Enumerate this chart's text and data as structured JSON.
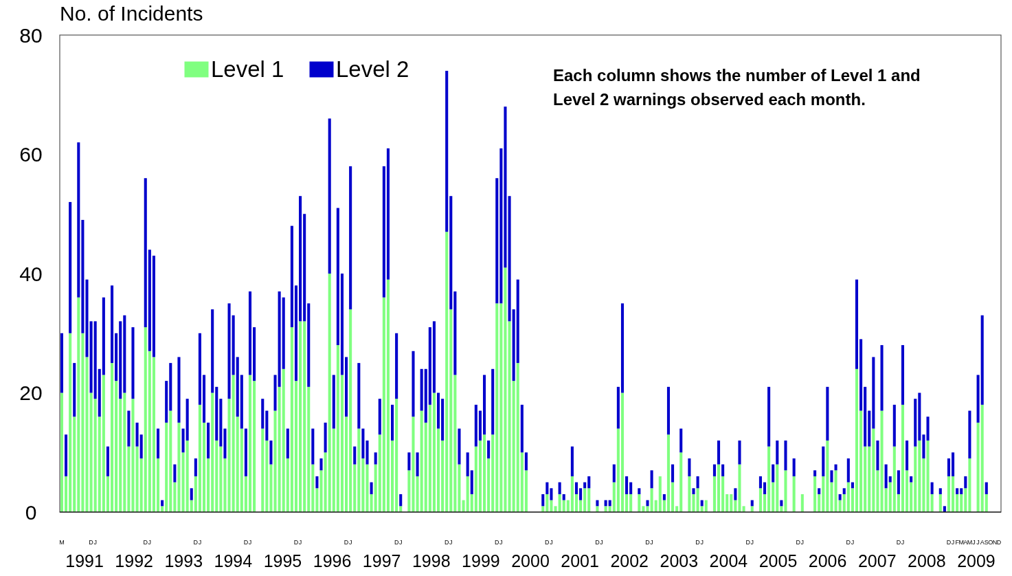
{
  "chart_data": {
    "type": "bar",
    "stacked": true,
    "ylabel": "No. of Incidents",
    "ylim": [
      0,
      80
    ],
    "yticks": [
      0,
      20,
      40,
      60,
      80
    ],
    "grid": false,
    "legend": "top left",
    "annotations": [
      "Each column shows the number of Level 1 and Level 2 warnings observed each month.",
      "1991",
      "1992",
      "1993",
      "1994",
      "1995",
      "1996",
      "1997",
      "1998",
      "1999",
      "2000",
      "2001",
      "2002",
      "2003",
      "2004",
      "2005",
      "2006",
      "2007",
      "2008",
      "2009"
    ],
    "categories": [
      "M",
      null,
      null,
      null,
      null,
      null,
      null,
      "D",
      "J",
      null,
      null,
      null,
      null,
      null,
      null,
      null,
      null,
      null,
      null,
      null,
      "D",
      "J",
      null,
      null,
      null,
      null,
      null,
      null,
      null,
      null,
      null,
      null,
      "D",
      "J",
      null,
      null,
      null,
      null,
      null,
      null,
      null,
      null,
      null,
      null,
      "D",
      "J",
      null,
      null,
      null,
      null,
      null,
      null,
      null,
      null,
      null,
      null,
      "D",
      "J",
      null,
      null,
      null,
      null,
      null,
      null,
      null,
      null,
      null,
      null,
      "D",
      "J",
      null,
      null,
      null,
      null,
      null,
      null,
      null,
      null,
      null,
      null,
      "D",
      "J",
      null,
      null,
      null,
      null,
      null,
      null,
      null,
      null,
      null,
      null,
      "D",
      "J",
      null,
      null,
      null,
      null,
      null,
      null,
      null,
      null,
      null,
      null,
      "D",
      "J",
      null,
      null,
      null,
      null,
      null,
      null,
      null,
      null,
      null,
      null,
      "D",
      "J",
      null,
      null,
      null,
      null,
      null,
      null,
      null,
      null,
      null,
      null,
      "D",
      "J",
      null,
      null,
      null,
      null,
      null,
      null,
      null,
      null,
      null,
      null,
      "D",
      "J",
      null,
      null,
      null,
      null,
      null,
      null,
      null,
      null,
      null,
      null,
      "D",
      "J",
      null,
      null,
      null,
      null,
      null,
      null,
      null,
      null,
      null,
      null,
      "D",
      "J",
      null,
      null,
      null,
      null,
      null,
      null,
      null,
      null,
      null,
      null,
      "D",
      "J",
      null,
      null,
      null,
      null,
      null,
      null,
      null,
      null,
      null,
      null,
      "D",
      "J",
      null,
      null,
      null,
      null,
      null,
      null,
      null,
      null,
      null,
      null,
      "D",
      "J",
      null,
      null,
      null,
      null,
      null,
      null,
      null,
      null,
      null,
      null,
      "D",
      "J",
      "F",
      "M",
      "A",
      "M",
      "J",
      "J",
      "A",
      "S",
      "O",
      "N",
      "D"
    ],
    "series": [
      {
        "name": "Level 1",
        "color": "#80ff80",
        "values": [
          20,
          6,
          30,
          16,
          36,
          30,
          26,
          20,
          19,
          16,
          23,
          6,
          25,
          22,
          19,
          20,
          11,
          19,
          11,
          9,
          31,
          27,
          26,
          9,
          1,
          15,
          17,
          5,
          15,
          10,
          12,
          2,
          6,
          18,
          15,
          9,
          20,
          12,
          11,
          9,
          19,
          23,
          16,
          14,
          6,
          23,
          22,
          0,
          14,
          12,
          8,
          17,
          21,
          24,
          9,
          31,
          22,
          32,
          32,
          21,
          8,
          4,
          7,
          10,
          40,
          14,
          28,
          23,
          16,
          34,
          8,
          14,
          9,
          8,
          3,
          8,
          13,
          36,
          39,
          12,
          19,
          1,
          0,
          7,
          16,
          6,
          17,
          15,
          18,
          20,
          14,
          12,
          47,
          34,
          23,
          8,
          2,
          6,
          3,
          11,
          12,
          13,
          9,
          13,
          35,
          35,
          41,
          32,
          22,
          25,
          10,
          7,
          0,
          0,
          0,
          1,
          3,
          2,
          1,
          3,
          2,
          2,
          6,
          3,
          2,
          4,
          4,
          0,
          1,
          0,
          1,
          1,
          5,
          14,
          20,
          3,
          3,
          0,
          3,
          1,
          1,
          4,
          2,
          6,
          2,
          13,
          5,
          1,
          10,
          0,
          6,
          3,
          4,
          1,
          2,
          0,
          6,
          8,
          6,
          3,
          3,
          2,
          8,
          1,
          0,
          1,
          0,
          4,
          3,
          11,
          5,
          8,
          1,
          7,
          0,
          6,
          0,
          3,
          0,
          0,
          6,
          3,
          6,
          12,
          5,
          7,
          2,
          3,
          5,
          4,
          24,
          17,
          11,
          11,
          14,
          7,
          17,
          4,
          5,
          11,
          3,
          18,
          7,
          5,
          11,
          12,
          9,
          12,
          3,
          0,
          3,
          0,
          6,
          6,
          3,
          3,
          4,
          9,
          0,
          15,
          18,
          3,
          0,
          0,
          0
        ]
      },
      {
        "name": "Level 2",
        "color": "#0000cc",
        "values": [
          10,
          7,
          22,
          9,
          26,
          19,
          13,
          12,
          13,
          8,
          13,
          5,
          13,
          8,
          13,
          13,
          6,
          12,
          4,
          4,
          25,
          17,
          17,
          5,
          1,
          7,
          8,
          3,
          11,
          4,
          7,
          2,
          3,
          12,
          8,
          6,
          14,
          9,
          8,
          5,
          16,
          10,
          10,
          9,
          8,
          14,
          9,
          0,
          5,
          5,
          4,
          6,
          16,
          12,
          5,
          17,
          16,
          21,
          18,
          14,
          6,
          2,
          2,
          5,
          26,
          9,
          23,
          17,
          10,
          24,
          3,
          11,
          5,
          4,
          2,
          2,
          6,
          22,
          22,
          6,
          11,
          2,
          0,
          3,
          11,
          4,
          7,
          9,
          13,
          12,
          6,
          7,
          27,
          19,
          14,
          6,
          0,
          4,
          4,
          7,
          5,
          10,
          3,
          11,
          21,
          26,
          27,
          21,
          12,
          14,
          8,
          3,
          0,
          0,
          0,
          2,
          2,
          2,
          0,
          2,
          1,
          0,
          5,
          2,
          2,
          1,
          2,
          0,
          1,
          0,
          1,
          1,
          3,
          7,
          15,
          3,
          2,
          0,
          1,
          0,
          1,
          3,
          0,
          0,
          1,
          8,
          3,
          0,
          4,
          0,
          3,
          1,
          2,
          1,
          0,
          0,
          2,
          4,
          2,
          0,
          0,
          2,
          4,
          0,
          0,
          1,
          0,
          2,
          2,
          10,
          3,
          4,
          1,
          5,
          0,
          3,
          0,
          0,
          0,
          0,
          1,
          1,
          5,
          9,
          2,
          1,
          1,
          1,
          4,
          1,
          15,
          12,
          10,
          6,
          12,
          5,
          11,
          4,
          1,
          7,
          4,
          10,
          5,
          1,
          8,
          8,
          4,
          4,
          2,
          0,
          1,
          1,
          3,
          4,
          1,
          1,
          2,
          8,
          0,
          8,
          15,
          2,
          0,
          0,
          0
        ]
      }
    ]
  }
}
